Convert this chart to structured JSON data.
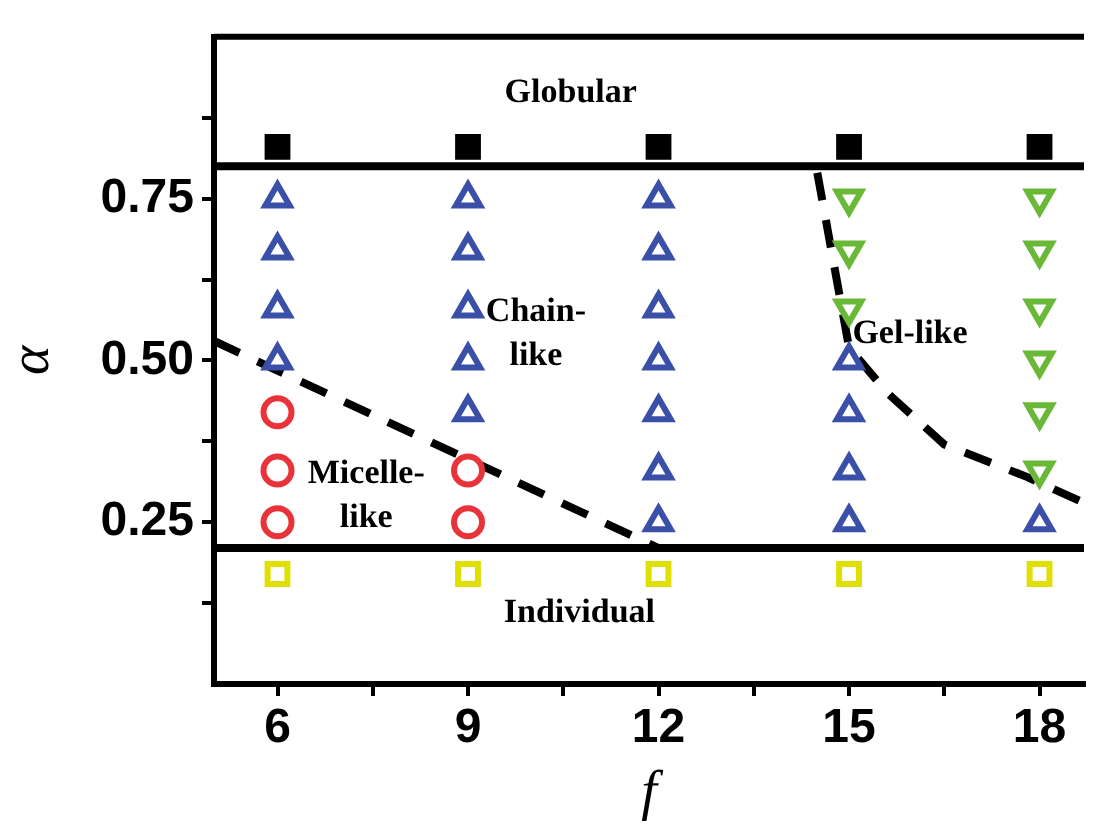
{
  "chart_data": {
    "type": "scatter",
    "xlabel": "f",
    "ylabel": "α",
    "xlim": [
      5,
      18.7
    ],
    "xticks": [
      6,
      {
        "value": 7.5,
        "label": null
      },
      9,
      {
        "value": 10.5,
        "label": null
      },
      12,
      {
        "value": 13.5,
        "label": null
      },
      15,
      {
        "value": 16.5,
        "label": null
      },
      18
    ],
    "ylim": [
      0,
      1
    ],
    "yticks": [
      {
        "value": 0.125,
        "label": null
      },
      {
        "value": 0.25,
        "label": "0.25"
      },
      {
        "value": 0.375,
        "label": null
      },
      {
        "value": 0.5,
        "label": "0.50"
      },
      {
        "value": 0.625,
        "label": null
      },
      {
        "value": 0.75,
        "label": "0.75"
      },
      {
        "value": 0.875,
        "label": null
      }
    ],
    "grid": false,
    "legend": false,
    "series": [
      {
        "color": "#000000",
        "marker": "square-filled",
        "x": [
          6,
          9,
          12,
          15,
          18
        ],
        "values": [
          0.83,
          0.83,
          0.83,
          0.83,
          0.83
        ]
      },
      {
        "color": "#e0e000",
        "marker": "square",
        "x": [
          6,
          9,
          12,
          15,
          18
        ],
        "values": [
          0.17,
          0.17,
          0.17,
          0.17,
          0.17
        ]
      },
      {
        "color": "#3a4fa8",
        "marker": "triangle",
        "x": [
          6,
          6,
          6,
          6,
          9,
          9,
          9,
          9,
          9,
          12,
          12,
          12,
          12,
          12,
          12,
          12,
          15,
          15,
          15,
          15,
          18
        ],
        "values": [
          0.75,
          0.67,
          0.58,
          0.5,
          0.75,
          0.67,
          0.58,
          0.5,
          0.42,
          0.75,
          0.67,
          0.58,
          0.5,
          0.42,
          0.33,
          0.25,
          0.5,
          0.42,
          0.33,
          0.25,
          0.25
        ]
      },
      {
        "color": "#e8333a",
        "marker": "circle",
        "x": [
          6,
          6,
          6,
          9,
          9
        ],
        "values": [
          0.42,
          0.33,
          0.25,
          0.33,
          0.25
        ]
      },
      {
        "color": "#6ab838",
        "marker": "triangle-down",
        "x": [
          15,
          15,
          15,
          18,
          18,
          18,
          18,
          18,
          18
        ],
        "values": [
          0.75,
          0.67,
          0.58,
          0.75,
          0.67,
          0.58,
          0.5,
          0.42,
          0.33
        ]
      },
      {
        "type": "line",
        "color": "#000000",
        "line_style": "dashed",
        "marker": "none",
        "x": [
          5,
          12
        ],
        "values": [
          0.53,
          0.21
        ]
      },
      {
        "type": "line",
        "color": "#000000",
        "line_style": "dashed",
        "marker": "none",
        "x": [
          14.5,
          15.0,
          15.6,
          16.5,
          17.8,
          18.7
        ],
        "values": [
          0.79,
          0.52,
          0.45,
          0.37,
          0.32,
          0.28
        ]
      }
    ],
    "ref_lines": [
      {
        "axis": "y",
        "value": 0.8,
        "color": "#000000",
        "line_style": "solid"
      },
      {
        "axis": "y",
        "value": 0.21,
        "color": "#000000",
        "line_style": "solid"
      }
    ],
    "annotations": [
      "Globular",
      "Chain-\nlike",
      "Micelle-\nlike",
      "Gel-like",
      "Individual"
    ]
  }
}
